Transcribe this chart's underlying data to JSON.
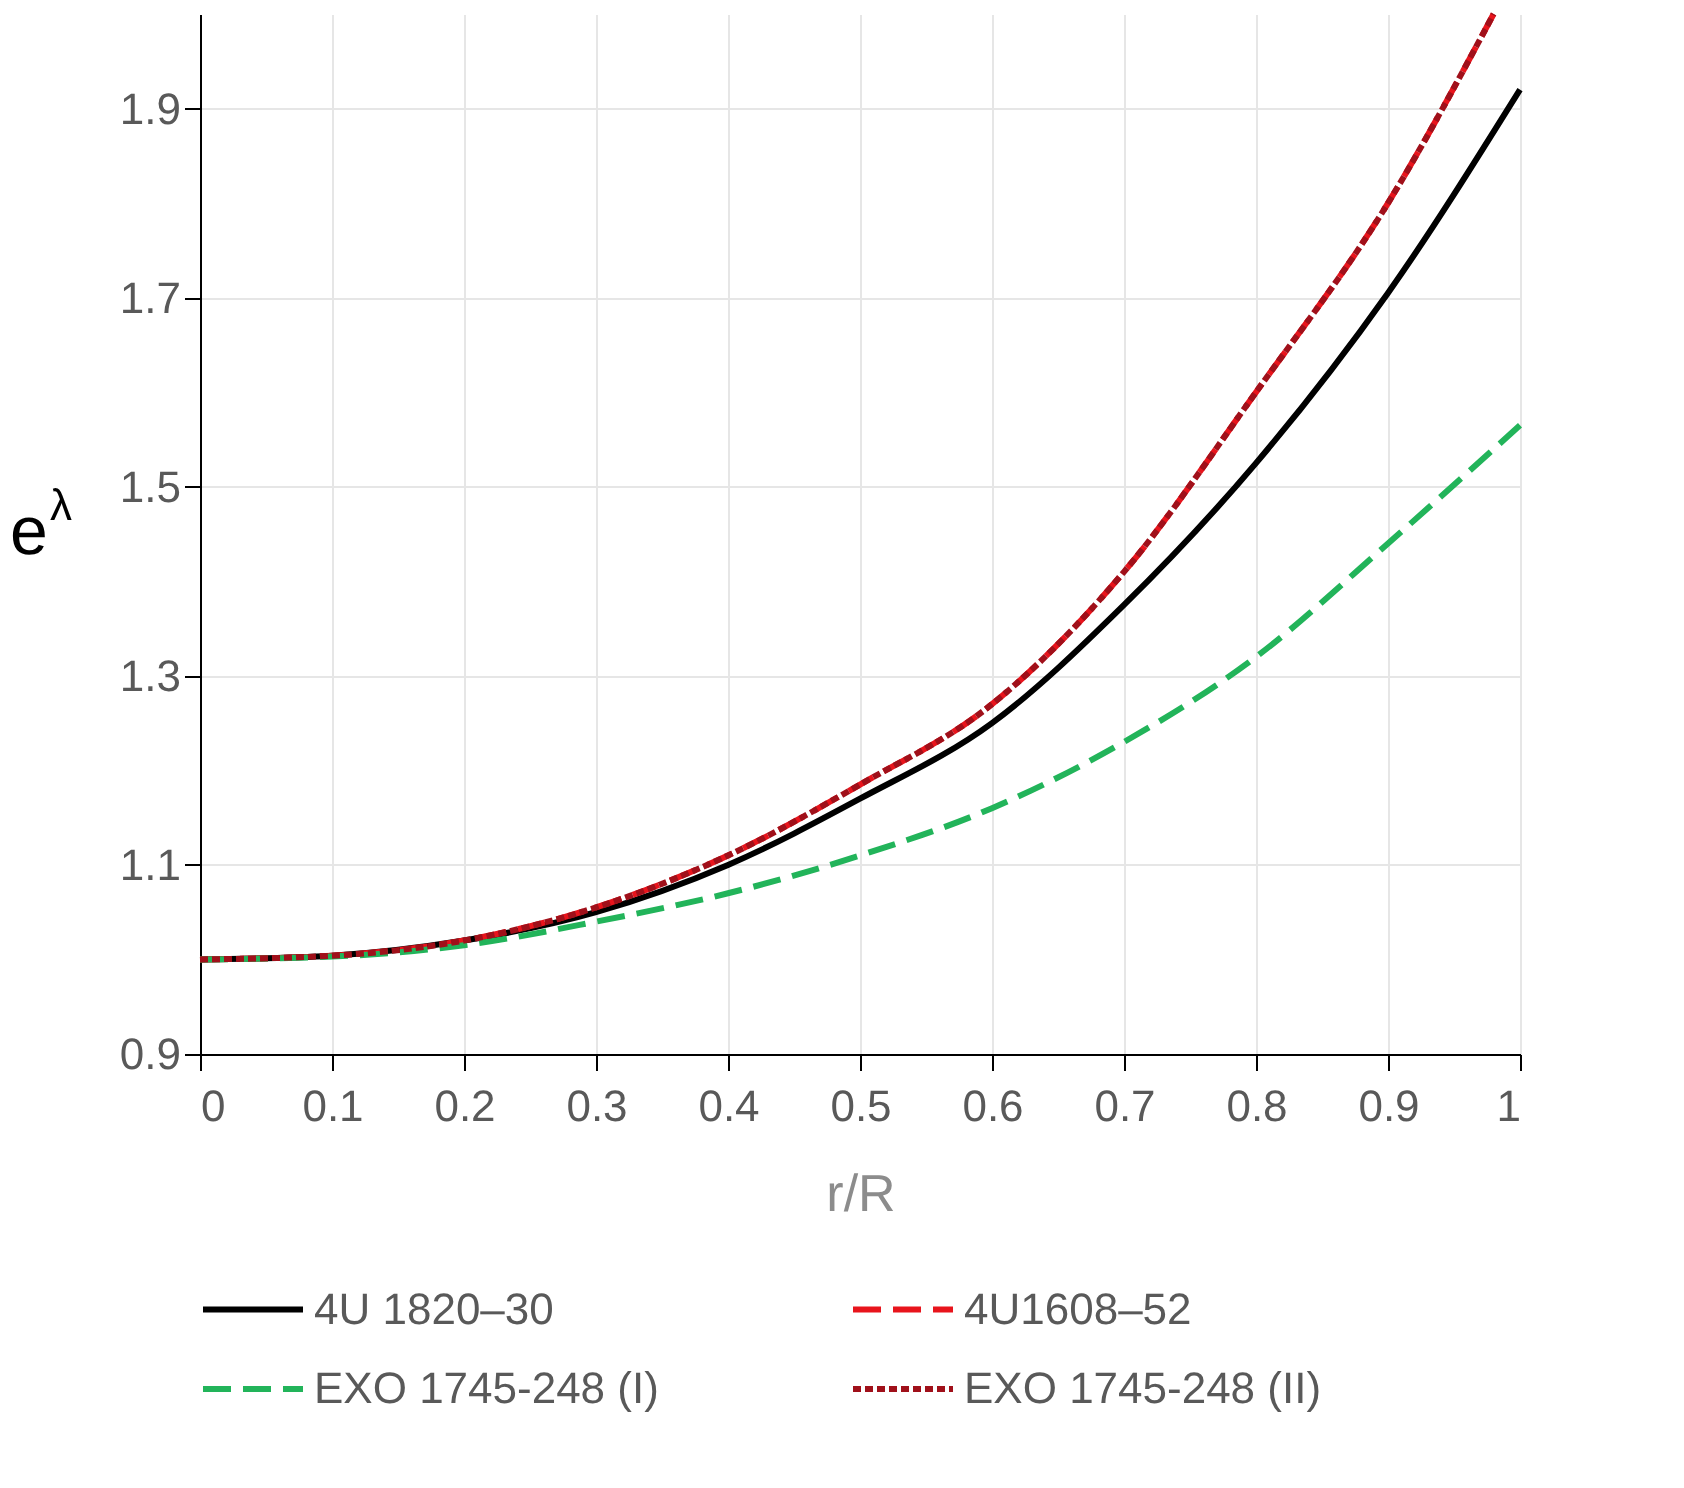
{
  "chart_data": {
    "type": "line",
    "xlabel": "r/R",
    "ylabel": "e$^{λ}$",
    "x": [
      0,
      0.1,
      0.2,
      0.3,
      0.4,
      0.5,
      0.6,
      0.7,
      0.8,
      0.9,
      1.0
    ],
    "series": [
      {
        "name": "4U 1820–30",
        "color": "#000000",
        "line_style": "solid",
        "values": [
          1.0,
          1.004,
          1.02,
          1.05,
          1.1,
          1.17,
          1.25,
          1.375,
          1.525,
          1.705,
          1.92
        ]
      },
      {
        "name": "4U1608–52",
        "color": "#e8141c",
        "line_style": "dashed",
        "x": [
          0,
          0.1,
          0.2,
          0.3,
          0.4,
          0.5,
          0.6,
          0.7,
          0.8,
          0.9,
          0.98
        ],
        "values": [
          1.0,
          1.004,
          1.02,
          1.055,
          1.11,
          1.185,
          1.27,
          1.41,
          1.6,
          1.8,
          2.0
        ]
      },
      {
        "name": "EXO 1745-248 (I)",
        "color": "#22b45a",
        "line_style": "dashed",
        "values": [
          1.0,
          1.003,
          1.015,
          1.04,
          1.07,
          1.11,
          1.16,
          1.23,
          1.32,
          1.44,
          1.565
        ]
      },
      {
        "name": "EXO 1745-248 (II)",
        "color": "#a0101a",
        "line_style": "dotted",
        "x": [
          0,
          0.1,
          0.2,
          0.3,
          0.4,
          0.5,
          0.6,
          0.7,
          0.8,
          0.9,
          0.98
        ],
        "values": [
          1.0,
          1.004,
          1.02,
          1.055,
          1.11,
          1.185,
          1.27,
          1.41,
          1.6,
          1.8,
          2.0
        ]
      }
    ],
    "xlim": [
      0,
      1
    ],
    "xticks": [
      0,
      0.1,
      0.2,
      0.3,
      0.4,
      0.5,
      0.6,
      0.7,
      0.8,
      0.9,
      1
    ],
    "ylim": [
      0.9,
      2.0
    ],
    "yticks": [
      0.9,
      1.1,
      1.3,
      1.5,
      1.7,
      1.9
    ],
    "grid": true,
    "legend": "bottom"
  }
}
